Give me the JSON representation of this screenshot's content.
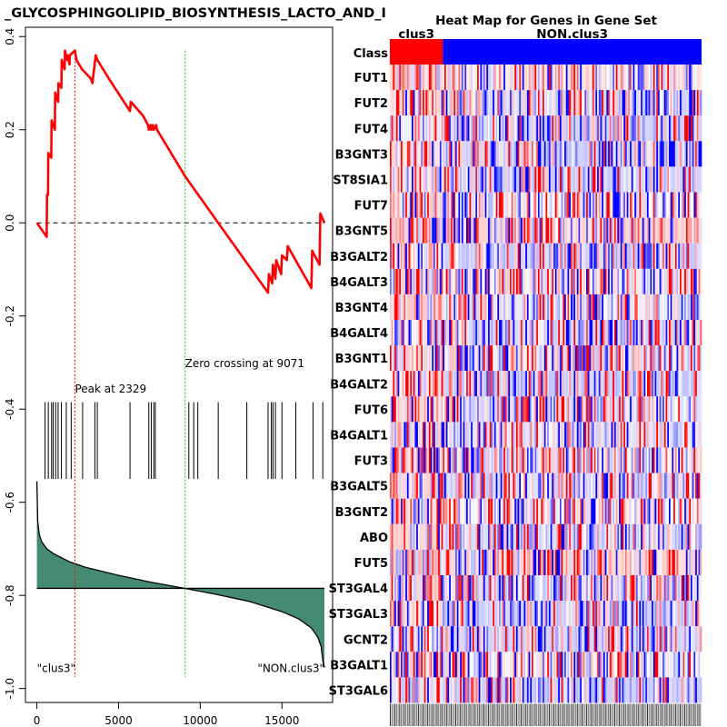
{
  "chart_data": [
    {
      "type": "line",
      "title": "_GLYCOSPHINGOLIPID_BIOSYNTHESIS_LACTO_AND_NEOLACTO_SERIES",
      "title_visible": "_GLYCOSPHINGOLIPID_BIOSYNTHESIS_LACTO_AND_I",
      "xlim": [
        -700,
        18100
      ],
      "ylim": [
        -1.03,
        0.42
      ],
      "x_ticks": [
        0,
        5000,
        10000,
        15000
      ],
      "x_tick_labels": [
        "0",
        "5000",
        "10000",
        "15000"
      ],
      "y_ticks": [
        0.4,
        0.2,
        0.0,
        -0.2,
        -0.4,
        -0.6,
        -0.8,
        -1.0
      ],
      "y_tick_labels": [
        "0.4",
        "0.2",
        "0.0",
        "-0.2",
        "-0.4",
        "-0.6",
        "-0.8",
        "-1.0"
      ],
      "enrichment_score": {
        "color": "#ff0000",
        "x": [
          0,
          600,
          620,
          680,
          700,
          880,
          900,
          1100,
          1120,
          1300,
          1320,
          1500,
          1520,
          1700,
          1720,
          1850,
          1870,
          2000,
          2020,
          2329,
          2420,
          2760,
          3300,
          3400,
          3600,
          3700,
          4400,
          5700,
          5750,
          6000,
          6500,
          6800,
          6850,
          6950,
          7000,
          7100,
          7150,
          7300,
          7350,
          9071,
          11300,
          14150,
          14200,
          14400,
          14450,
          14600,
          14650,
          14950,
          15000,
          15300,
          15350,
          16800,
          16850,
          17300,
          17350,
          17600
        ],
        "y": [
          0.0,
          -0.03,
          0.06,
          0.06,
          0.15,
          0.14,
          0.22,
          0.2,
          0.28,
          0.26,
          0.3,
          0.29,
          0.35,
          0.33,
          0.37,
          0.35,
          0.36,
          0.34,
          0.36,
          0.37,
          0.35,
          0.33,
          0.31,
          0.3,
          0.36,
          0.35,
          0.31,
          0.24,
          0.26,
          0.25,
          0.23,
          0.21,
          0.2,
          0.21,
          0.2,
          0.21,
          0.2,
          0.21,
          0.2,
          0.1,
          -0.01,
          -0.15,
          -0.11,
          -0.13,
          -0.09,
          -0.12,
          -0.08,
          -0.11,
          -0.07,
          -0.08,
          -0.05,
          -0.14,
          -0.06,
          -0.09,
          0.02,
          0.0
        ]
      },
      "zero_line": 0.0,
      "peak": {
        "x": 2329,
        "label": "Peak at 2329",
        "color": "#ff0000"
      },
      "zero_crossing": {
        "x": 9071,
        "label": "Zero crossing at 9071",
        "color": "#00cc00"
      },
      "hits": [
        500,
        700,
        900,
        1000,
        1150,
        1300,
        1500,
        1800,
        2100,
        2800,
        3550,
        3700,
        5700,
        6850,
        7000,
        7150,
        7250,
        9300,
        9600,
        9850,
        11100,
        12850,
        14150,
        14350,
        14450,
        14600,
        15000,
        15850,
        16900,
        17500
      ],
      "hit_band_y": [
        -0.55,
        -0.385
      ],
      "ranked_metric": {
        "fill_color": "#458b74",
        "baseline_y": -0.785,
        "x": [
          0,
          50,
          150,
          300,
          600,
          1000,
          2000,
          3000,
          5000,
          7000,
          9071,
          11000,
          13000,
          15000,
          16000,
          16800,
          17200,
          17400,
          17500,
          17600
        ],
        "y": [
          -0.555,
          -0.64,
          -0.67,
          -0.685,
          -0.7,
          -0.71,
          -0.728,
          -0.74,
          -0.757,
          -0.772,
          -0.785,
          -0.798,
          -0.813,
          -0.835,
          -0.85,
          -0.87,
          -0.89,
          -0.91,
          -0.94,
          -0.955
        ]
      },
      "left_class_label": "\"clus3\"",
      "right_class_label": "\"NON.clus3\""
    },
    {
      "type": "heatmap",
      "title": "Heat Map for Genes in Gene Set",
      "class_row_label": "Class",
      "classes": [
        {
          "name": "clus3",
          "color": "#ff0000",
          "fraction": 0.17
        },
        {
          "name": "NON.clus3",
          "color": "#0000ff",
          "fraction": 0.83
        }
      ],
      "genes": [
        "FUT1",
        "FUT2",
        "FUT4",
        "B3GNT3",
        "ST8SIA1",
        "FUT7",
        "B3GNT5",
        "B3GALT2",
        "B4GALT3",
        "B3GNT4",
        "B4GALT4",
        "B3GNT1",
        "B4GALT2",
        "FUT6",
        "B4GALT1",
        "FUT3",
        "B3GALT5",
        "B3GNT2",
        "ABO",
        "FUT5",
        "ST3GAL4",
        "ST3GAL3",
        "GCNT2",
        "B3GALT1",
        "ST3GAL6"
      ],
      "color_scale": {
        "low": "#0000ff",
        "mid": "#ffffff",
        "high": "#ff0000"
      }
    }
  ]
}
